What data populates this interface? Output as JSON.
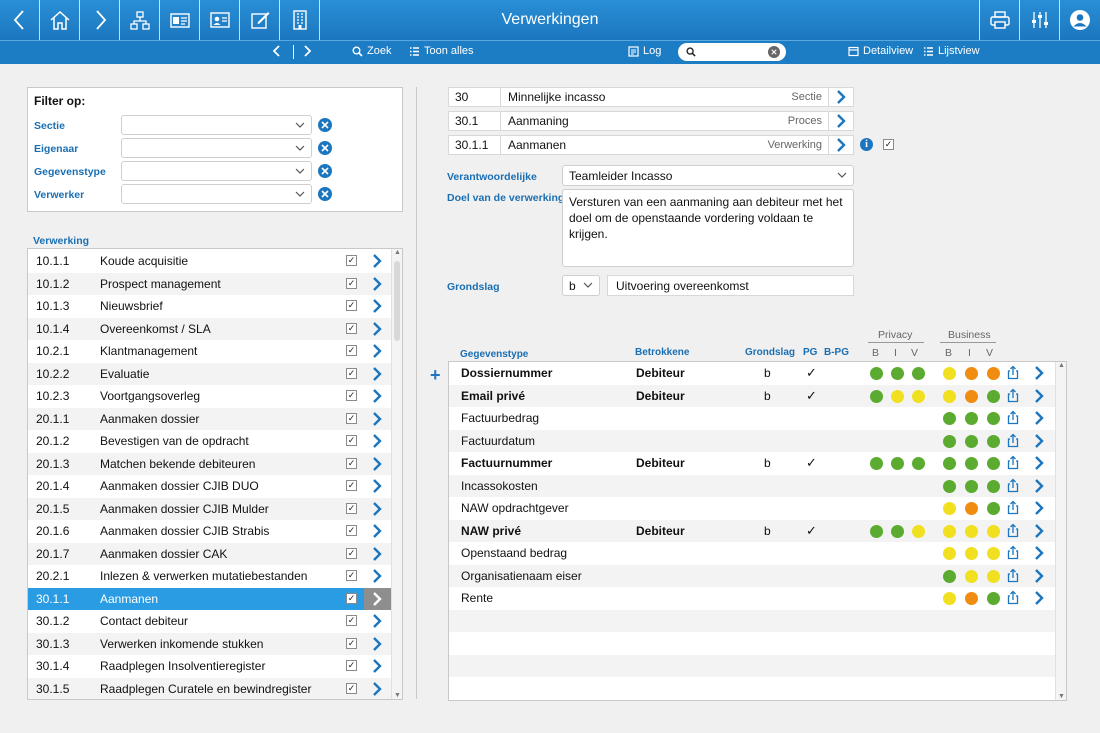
{
  "window": {
    "title": "Verwerkingen"
  },
  "toolbar": {
    "left": [
      {
        "name": "back-button",
        "icon": "chevron-left-icon"
      },
      {
        "name": "home-button",
        "icon": "home-icon"
      },
      {
        "name": "forward-button",
        "icon": "chevron-right-icon"
      },
      {
        "name": "hierarchy-button",
        "icon": "org-chart-icon"
      },
      {
        "name": "card-button",
        "icon": "id-card-icon"
      },
      {
        "name": "contact-button",
        "icon": "contact-card-icon"
      },
      {
        "name": "edit-button",
        "icon": "edit-icon"
      },
      {
        "name": "building-button",
        "icon": "building-icon"
      }
    ],
    "right": [
      {
        "name": "print-button",
        "icon": "printer-icon"
      },
      {
        "name": "settings-button",
        "icon": "sliders-icon"
      },
      {
        "name": "user-button",
        "icon": "user-icon"
      }
    ]
  },
  "nav": {
    "zoek": "Zoek",
    "toon_alles": "Toon alles",
    "log": "Log",
    "search_value": "",
    "detailview": "Detailview",
    "lijstview": "Lijstview"
  },
  "filter": {
    "title": "Filter op:",
    "fields": [
      {
        "label": "Sectie",
        "value": ""
      },
      {
        "label": "Eigenaar",
        "value": ""
      },
      {
        "label": "Gegevenstype",
        "value": ""
      },
      {
        "label": "Verwerker",
        "value": ""
      }
    ]
  },
  "verwerking": {
    "label": "Verwerking",
    "selected_index": 15,
    "rows": [
      {
        "code": "10.1.1",
        "name": "Koude acquisitie",
        "checked": true
      },
      {
        "code": "10.1.2",
        "name": "Prospect management",
        "checked": true
      },
      {
        "code": "10.1.3",
        "name": "Nieuwsbrief",
        "checked": true
      },
      {
        "code": "10.1.4",
        "name": "Overeenkomst / SLA",
        "checked": true
      },
      {
        "code": "10.2.1",
        "name": "Klantmanagement",
        "checked": true
      },
      {
        "code": "10.2.2",
        "name": "Evaluatie",
        "checked": true
      },
      {
        "code": "10.2.3",
        "name": "Voortgangsoverleg",
        "checked": true
      },
      {
        "code": "20.1.1",
        "name": "Aanmaken dossier",
        "checked": true
      },
      {
        "code": "20.1.2",
        "name": "Bevestigen van de opdracht",
        "checked": true
      },
      {
        "code": "20.1.3",
        "name": "Matchen bekende debiteuren",
        "checked": true
      },
      {
        "code": "20.1.4",
        "name": "Aanmaken dossier CJIB DUO",
        "checked": true
      },
      {
        "code": "20.1.5",
        "name": "Aanmaken dossier CJIB Mulder",
        "checked": true
      },
      {
        "code": "20.1.6",
        "name": "Aanmaken dossier CJIB Strabis",
        "checked": true
      },
      {
        "code": "20.1.7",
        "name": "Aanmaken dossier CAK",
        "checked": true
      },
      {
        "code": "20.2.1",
        "name": "Inlezen & verwerken mutatiebestanden",
        "checked": true
      },
      {
        "code": "30.1.1",
        "name": "Aanmanen",
        "checked": true
      },
      {
        "code": "30.1.2",
        "name": "Contact debiteur",
        "checked": true
      },
      {
        "code": "30.1.3",
        "name": "Verwerken inkomende stukken",
        "checked": true
      },
      {
        "code": "30.1.4",
        "name": "Raadplegen Insolventieregister",
        "checked": true
      },
      {
        "code": "30.1.5",
        "name": "Raadplegen Curatele en bewindregister",
        "checked": true
      }
    ]
  },
  "detail": {
    "hierarchy": [
      {
        "code": "30",
        "name": "Minnelijke incasso",
        "type": "Sectie"
      },
      {
        "code": "30.1",
        "name": "Aanmaning",
        "type": "Proces"
      },
      {
        "code": "30.1.1",
        "name": "Aanmanen",
        "type": "Verwerking"
      }
    ],
    "active_checked": true,
    "verantwoordelijke_label": "Verantwoordelijke",
    "verantwoordelijke_value": "Teamleider Incasso",
    "doel_label": "Doel van de verwerking",
    "doel_value": "Versturen van een aanmaning aan debiteur met het doel om de openstaande vordering voldaan te krijgen.",
    "grondslag_label": "Grondslag",
    "grondslag_code": "b",
    "grondslag_value": "Uitvoering overeenkomst"
  },
  "gegevens": {
    "headers": {
      "type": "Gegevenstype",
      "betrokkene": "Betrokkene",
      "grondslag": "Grondslag",
      "pg": "PG",
      "bpg": "B-PG",
      "privacy": "Privacy",
      "business": "Business",
      "b": "B",
      "i": "I",
      "v": "V"
    },
    "colors": {
      "green": "#5aab2f",
      "yellow": "#f0e020",
      "orange": "#f08c10"
    },
    "rows": [
      {
        "type": "Dossiernummer",
        "bold": true,
        "betrokkene": "Debiteur",
        "grondslag": "b",
        "pg": "✓",
        "privacy": [
          "green",
          "green",
          "green"
        ],
        "business": [
          "yellow",
          "orange",
          "orange"
        ]
      },
      {
        "type": "Email privé",
        "bold": true,
        "betrokkene": "Debiteur",
        "grondslag": "b",
        "pg": "✓",
        "privacy": [
          "green",
          "yellow",
          "yellow"
        ],
        "business": [
          "yellow",
          "orange",
          "green"
        ]
      },
      {
        "type": "Factuurbedrag",
        "bold": false,
        "betrokkene": "",
        "grondslag": "",
        "pg": "",
        "privacy": [],
        "business": [
          "green",
          "green",
          "green"
        ]
      },
      {
        "type": "Factuurdatum",
        "bold": false,
        "betrokkene": "",
        "grondslag": "",
        "pg": "",
        "privacy": [],
        "business": [
          "green",
          "green",
          "green"
        ]
      },
      {
        "type": "Factuurnummer",
        "bold": true,
        "betrokkene": "Debiteur",
        "grondslag": "b",
        "pg": "✓",
        "privacy": [
          "green",
          "green",
          "green"
        ],
        "business": [
          "green",
          "green",
          "green"
        ]
      },
      {
        "type": "Incassokosten",
        "bold": false,
        "betrokkene": "",
        "grondslag": "",
        "pg": "",
        "privacy": [],
        "business": [
          "green",
          "green",
          "green"
        ]
      },
      {
        "type": "NAW opdrachtgever",
        "bold": false,
        "betrokkene": "",
        "grondslag": "",
        "pg": "",
        "privacy": [],
        "business": [
          "yellow",
          "orange",
          "green"
        ]
      },
      {
        "type": "NAW privé",
        "bold": true,
        "betrokkene": "Debiteur",
        "grondslag": "b",
        "pg": "✓",
        "privacy": [
          "green",
          "green",
          "yellow"
        ],
        "business": [
          "yellow",
          "yellow",
          "yellow"
        ]
      },
      {
        "type": "Openstaand bedrag",
        "bold": false,
        "betrokkene": "",
        "grondslag": "",
        "pg": "",
        "privacy": [],
        "business": [
          "yellow",
          "yellow",
          "yellow"
        ]
      },
      {
        "type": "Organisatienaam eiser",
        "bold": false,
        "betrokkene": "",
        "grondslag": "",
        "pg": "",
        "privacy": [],
        "business": [
          "green",
          "yellow",
          "yellow"
        ]
      },
      {
        "type": "Rente",
        "bold": false,
        "betrokkene": "",
        "grondslag": "",
        "pg": "",
        "privacy": [],
        "business": [
          "yellow",
          "orange",
          "green"
        ]
      }
    ],
    "empty_rows": 4
  }
}
